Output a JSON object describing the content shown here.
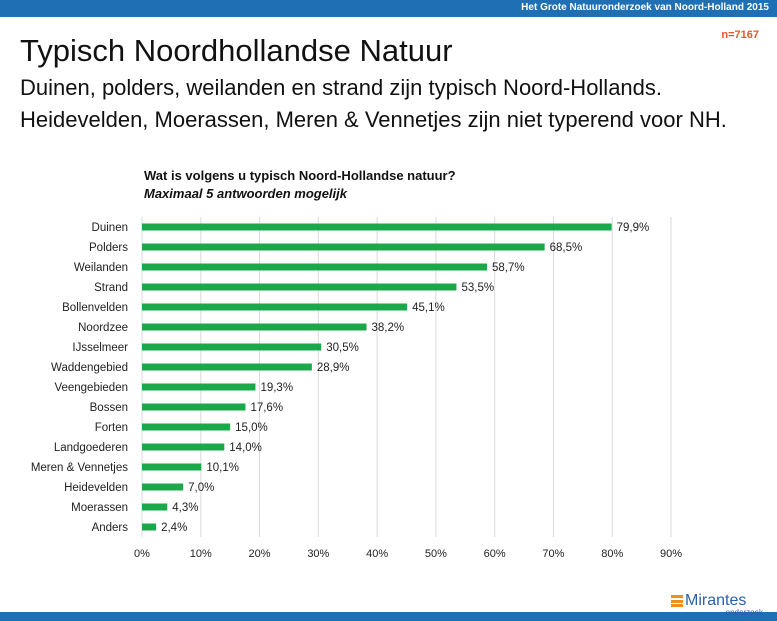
{
  "header": {
    "source": "Het Grote Natuuronderzoek van Noord-Holland 2015",
    "n": "n=7167"
  },
  "title": "Typisch Noordhollandse Natuur",
  "subtitle_lines": [
    "Duinen, polders, weilanden en strand zijn typisch Noord-Hollands.",
    "Heidevelden, Moerassen, Meren & Vennetjes zijn niet typerend voor NH."
  ],
  "question": "Wat is volgens u typisch Noord-Hollandse natuur?",
  "note": "Maximaal 5 antwoorden mogelijk",
  "logo": {
    "name": "Mirantes",
    "sub": "onderzoek"
  },
  "colors": {
    "bar": "#19a84a",
    "grid": "#d9d9d9",
    "bars_header": "#1f6fb4",
    "accent": "#e8552a"
  },
  "chart_data": {
    "type": "bar",
    "orientation": "horizontal",
    "categories": [
      "Duinen",
      "Polders",
      "Weilanden",
      "Strand",
      "Bollenvelden",
      "Noordzee",
      "IJsselmeer",
      "Waddengebied",
      "Veengebieden",
      "Bossen",
      "Forten",
      "Landgoederen",
      "Meren & Vennetjes",
      "Heidevelden",
      "Moerassen",
      "Anders"
    ],
    "values": [
      79.9,
      68.5,
      58.7,
      53.5,
      45.1,
      38.2,
      30.5,
      28.9,
      19.3,
      17.6,
      15.0,
      14.0,
      10.1,
      7.0,
      4.3,
      2.4
    ],
    "data_labels": [
      "79,9%",
      "68,5%",
      "58,7%",
      "53,5%",
      "45,1%",
      "38,2%",
      "30,5%",
      "28,9%",
      "19,3%",
      "17,6%",
      "15,0%",
      "14,0%",
      "10,1%",
      "7,0%",
      "4,3%",
      "2,4%"
    ],
    "x_ticks": [
      "0%",
      "10%",
      "20%",
      "30%",
      "40%",
      "50%",
      "60%",
      "70%",
      "80%",
      "90%"
    ],
    "xlim": [
      0,
      90
    ],
    "grid": true
  }
}
